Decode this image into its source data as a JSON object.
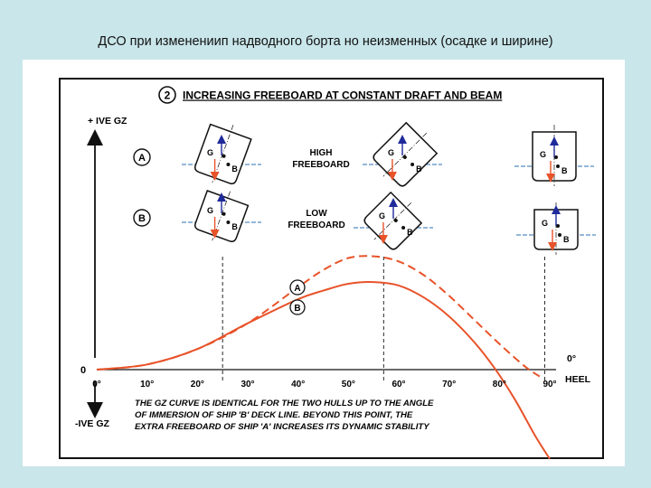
{
  "slide_title": "ДСО при изменениип надводного борта но неизменных (осадке и ширине)",
  "colors": {
    "curve": "#e8532a",
    "ship_outline": "#111111",
    "gravity_arrow": "#1f2a9a",
    "buoyancy_arrow": "#e8532a",
    "frame": "#111111"
  },
  "chart_data": {
    "type": "line",
    "panel_number": "2",
    "title": "INCREASING FREEBOARD AT CONSTANT DRAFT AND BEAM",
    "y_top_label": "+ IVE GZ",
    "y_bottom_label": "-IVE GZ",
    "y_zero_label": "0",
    "x_label": "HEEL",
    "x_ticks": [
      "0°",
      "10°",
      "20°",
      "30°",
      "40°",
      "50°",
      "60°",
      "70°",
      "80°",
      "90°"
    ],
    "x_tick_values": [
      0,
      10,
      20,
      30,
      40,
      50,
      60,
      70,
      80,
      90
    ],
    "xlim": [
      0,
      90
    ],
    "ylim": [
      -1,
      1
    ],
    "zero_marker_label": "0°",
    "grid": false,
    "series": [
      {
        "name": "A",
        "style": "dashed",
        "x": [
          0,
          10,
          20,
          30,
          40,
          45,
          50,
          55,
          60,
          65,
          70,
          75,
          80,
          85,
          88
        ],
        "y": [
          0,
          0.03,
          0.12,
          0.27,
          0.48,
          0.58,
          0.65,
          0.66,
          0.63,
          0.55,
          0.43,
          0.29,
          0.15,
          0.02,
          -0.04
        ]
      },
      {
        "name": "B",
        "style": "solid",
        "x": [
          0,
          10,
          20,
          30,
          40,
          45,
          50,
          55,
          60,
          65,
          70,
          75,
          79,
          83,
          87,
          90
        ],
        "y": [
          0,
          0.03,
          0.12,
          0.27,
          0.41,
          0.46,
          0.5,
          0.51,
          0.49,
          0.42,
          0.31,
          0.16,
          0.01,
          -0.17,
          -0.38,
          -0.52
        ]
      }
    ],
    "vertical_markers": [
      {
        "x": 25,
        "note": "deck edge immersion of ship B"
      },
      {
        "x": 57,
        "note": "maximum GZ"
      },
      {
        "x": 89
      }
    ],
    "row_labels": [
      "A",
      "B"
    ],
    "row_captions": [
      {
        "lines": [
          "HIGH",
          "FREEBOARD"
        ]
      },
      {
        "lines": [
          "LOW",
          "FREEBOARD"
        ]
      }
    ],
    "curve_labels": [
      "A",
      "B"
    ],
    "ship_point_labels": {
      "gravity": "G",
      "buoyancy": "B"
    },
    "annotation": [
      "THE GZ CURVE IS IDENTICAL FOR THE TWO HULLS UP TO THE ANGLE",
      "OF IMMERSION OF SHIP 'B' DECK LINE. BEYOND THIS POINT, THE",
      "EXTRA FREEBOARD OF SHIP 'A' INCREASES ITS DYNAMIC STABILITY"
    ]
  }
}
